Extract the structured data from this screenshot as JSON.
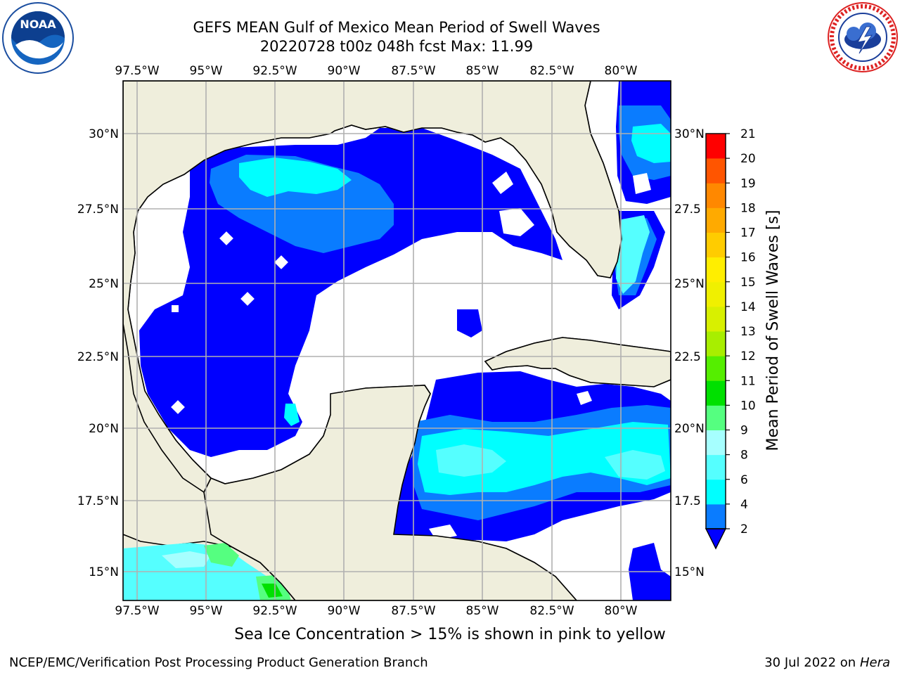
{
  "header": {
    "title_line1": "GEFS MEAN Gulf of Mexico Mean Period of Swell Waves",
    "title_line2": "20220728 t00z 048h fcst   Max: 11.99"
  },
  "logos": {
    "left": "noaa-logo",
    "right": "national-weather-service-logo"
  },
  "map": {
    "lon_labels": [
      "97.5°W",
      "95°W",
      "92.5°W",
      "90°W",
      "87.5°W",
      "85°W",
      "82.5°W",
      "80°W"
    ],
    "lat_labels": [
      "30°N",
      "27.5°N",
      "25°N",
      "22.5°N",
      "20°N",
      "17.5°N",
      "15°N"
    ],
    "right_lat_labels": [
      "30°N",
      "27.5",
      "25°N",
      "22.5",
      "20°N",
      "17.5",
      "15°N"
    ],
    "land_color": "#efeedc",
    "ocean_color": "#ffffff"
  },
  "colorbar": {
    "label": "Mean Period of Swell Waves [s]",
    "ticks": [
      "2",
      "4",
      "6",
      "8",
      "9",
      "10",
      "11",
      "12",
      "13",
      "14",
      "15",
      "16",
      "17",
      "18",
      "19",
      "20",
      "21"
    ],
    "colors": [
      "#0a7cff",
      "#00ffff",
      "#55ffff",
      "#a6ffff",
      "#55ff80",
      "#00e000",
      "#55ee00",
      "#a8ee00",
      "#d8f000",
      "#f0f000",
      "#ffee00",
      "#ffcc00",
      "#ffaa00",
      "#ff8800",
      "#ff5500",
      "#ff2200",
      "#ff0000"
    ],
    "under_color": "#0000ff"
  },
  "note": "Sea Ice Concentration > 15% is shown in pink to yellow",
  "footer": {
    "left": "NCEP/EMC/Verification Post Processing Product Generation Branch",
    "right_date": "30 Jul 2022 on ",
    "right_host": "Hera"
  }
}
